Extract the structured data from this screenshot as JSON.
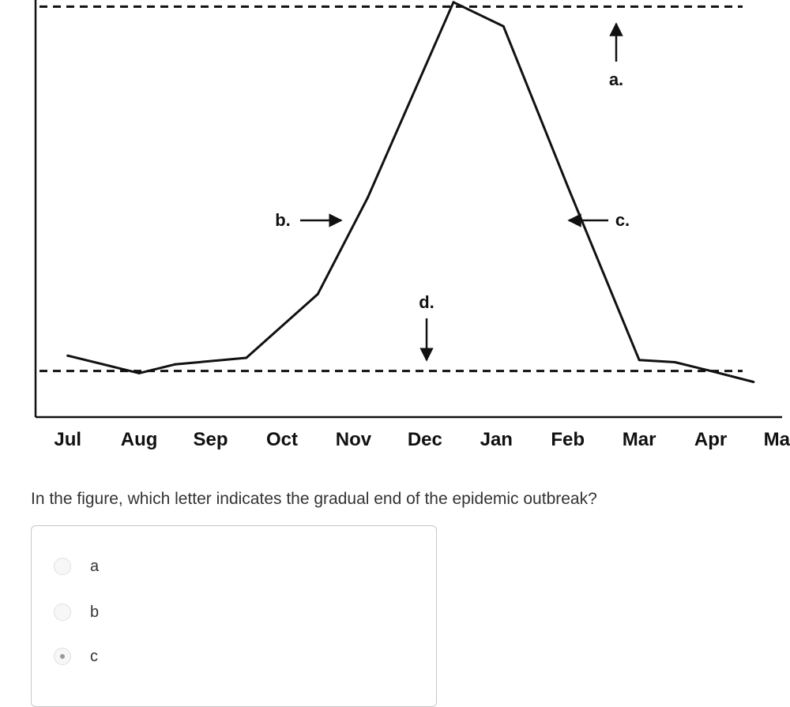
{
  "chart_data": {
    "type": "line",
    "categories": [
      "Jul",
      "Aug",
      "Sep",
      "Oct",
      "Nov",
      "Dec",
      "Jan",
      "Feb",
      "Mar",
      "Apr",
      "May"
    ],
    "x": [
      0,
      1,
      1.5,
      2.5,
      3.5,
      4.2,
      5.4,
      6.1,
      7.0,
      8.0,
      8.5,
      9.0,
      9.6
    ],
    "y": [
      3.8,
      3.0,
      3.4,
      3.7,
      6.6,
      11.0,
      19.9,
      18.8,
      11.5,
      3.6,
      3.5,
      3.1,
      2.6
    ],
    "ylim": [
      1.0,
      20.0
    ],
    "xlim": [
      -0.45,
      10.0
    ],
    "grid": false,
    "legend": "none",
    "reference_lines": [
      {
        "value": 19.7,
        "style": "dashed"
      },
      {
        "value": 3.1,
        "style": "dashed"
      }
    ],
    "annotations": [
      {
        "label": "a.",
        "arrow": "up"
      },
      {
        "label": "b.",
        "arrow": "right"
      },
      {
        "label": "c.",
        "arrow": "left"
      },
      {
        "label": "d.",
        "arrow": "down"
      }
    ]
  },
  "question": {
    "text": "In the figure, which letter indicates the gradual end of the epidemic outbreak?",
    "options": [
      {
        "label": "a",
        "selected": false
      },
      {
        "label": "b",
        "selected": false
      },
      {
        "label": "c",
        "selected": true
      }
    ]
  }
}
